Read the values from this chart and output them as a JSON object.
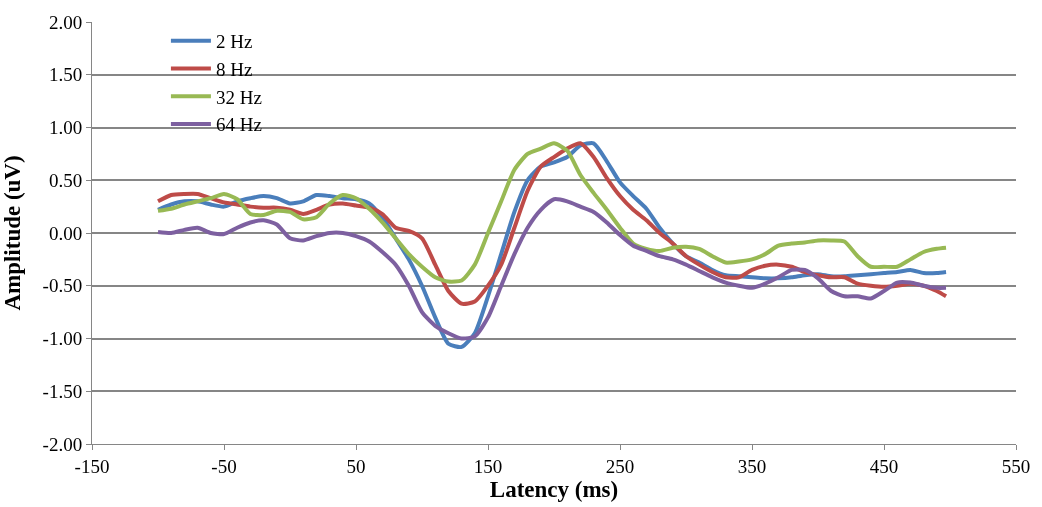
{
  "chart_data": {
    "type": "line",
    "xlabel": "Latency (ms)",
    "ylabel": "Amplitude (uV)",
    "x": [
      -100,
      -90,
      -80,
      -70,
      -60,
      -50,
      -40,
      -30,
      -20,
      -10,
      0,
      10,
      20,
      30,
      40,
      50,
      60,
      70,
      80,
      90,
      100,
      110,
      120,
      130,
      140,
      150,
      160,
      170,
      180,
      190,
      200,
      210,
      220,
      230,
      240,
      250,
      260,
      270,
      280,
      290,
      300,
      310,
      320,
      330,
      340,
      350,
      360,
      370,
      380,
      390,
      400,
      410,
      420,
      430,
      440,
      450,
      460,
      470,
      480,
      490,
      497
    ],
    "series": [
      {
        "name": "2 Hz",
        "color": "#4a7ebb",
        "values": [
          0.22,
          0.27,
          0.3,
          0.3,
          0.27,
          0.25,
          0.3,
          0.33,
          0.35,
          0.33,
          0.28,
          0.3,
          0.36,
          0.35,
          0.33,
          0.32,
          0.28,
          0.15,
          -0.05,
          -0.25,
          -0.5,
          -0.8,
          -1.05,
          -1.08,
          -0.95,
          -0.6,
          -0.2,
          0.2,
          0.5,
          0.63,
          0.67,
          0.72,
          0.83,
          0.85,
          0.68,
          0.48,
          0.35,
          0.23,
          0.05,
          -0.1,
          -0.22,
          -0.28,
          -0.35,
          -0.4,
          -0.41,
          -0.42,
          -0.43,
          -0.43,
          -0.42,
          -0.4,
          -0.39,
          -0.41,
          -0.41,
          -0.4,
          -0.39,
          -0.38,
          -0.37,
          -0.35,
          -0.38,
          -0.38,
          -0.37
        ]
      },
      {
        "name": "8 Hz",
        "color": "#be4b48",
        "values": [
          0.3,
          0.36,
          0.37,
          0.37,
          0.33,
          0.29,
          0.27,
          0.25,
          0.24,
          0.24,
          0.22,
          0.18,
          0.22,
          0.27,
          0.28,
          0.26,
          0.24,
          0.18,
          0.05,
          0.02,
          -0.05,
          -0.3,
          -0.55,
          -0.67,
          -0.65,
          -0.5,
          -0.3,
          0.05,
          0.4,
          0.63,
          0.72,
          0.8,
          0.85,
          0.72,
          0.52,
          0.35,
          0.22,
          0.12,
          0.0,
          -0.1,
          -0.22,
          -0.3,
          -0.37,
          -0.42,
          -0.42,
          -0.35,
          -0.31,
          -0.3,
          -0.32,
          -0.37,
          -0.4,
          -0.42,
          -0.42,
          -0.48,
          -0.5,
          -0.51,
          -0.5,
          -0.48,
          -0.5,
          -0.55,
          -0.6
        ]
      },
      {
        "name": "32 Hz",
        "color": "#98b954",
        "values": [
          0.21,
          0.23,
          0.27,
          0.3,
          0.33,
          0.37,
          0.32,
          0.18,
          0.17,
          0.21,
          0.2,
          0.13,
          0.15,
          0.28,
          0.36,
          0.33,
          0.23,
          0.1,
          -0.05,
          -0.2,
          -0.32,
          -0.42,
          -0.46,
          -0.45,
          -0.3,
          0.0,
          0.3,
          0.6,
          0.75,
          0.8,
          0.85,
          0.78,
          0.55,
          0.38,
          0.22,
          0.05,
          -0.1,
          -0.15,
          -0.17,
          -0.14,
          -0.13,
          -0.15,
          -0.22,
          -0.28,
          -0.27,
          -0.25,
          -0.2,
          -0.12,
          -0.1,
          -0.09,
          -0.07,
          -0.07,
          -0.08,
          -0.22,
          -0.32,
          -0.32,
          -0.32,
          -0.25,
          -0.18,
          -0.15,
          -0.14
        ]
      },
      {
        "name": "64 Hz",
        "color": "#7d60a0",
        "values": [
          0.01,
          0.0,
          0.03,
          0.05,
          0.0,
          -0.01,
          0.05,
          0.1,
          0.12,
          0.08,
          -0.05,
          -0.07,
          -0.03,
          0.0,
          0.0,
          -0.03,
          -0.08,
          -0.18,
          -0.3,
          -0.5,
          -0.75,
          -0.88,
          -0.95,
          -1.0,
          -0.98,
          -0.8,
          -0.5,
          -0.2,
          0.05,
          0.22,
          0.32,
          0.3,
          0.25,
          0.2,
          0.1,
          -0.02,
          -0.12,
          -0.17,
          -0.22,
          -0.25,
          -0.3,
          -0.36,
          -0.42,
          -0.47,
          -0.5,
          -0.52,
          -0.48,
          -0.42,
          -0.35,
          -0.35,
          -0.43,
          -0.55,
          -0.6,
          -0.6,
          -0.62,
          -0.55,
          -0.47,
          -0.47,
          -0.5,
          -0.52,
          -0.52
        ]
      }
    ],
    "xlim": [
      -150,
      550
    ],
    "xticks": [
      -150,
      -50,
      50,
      150,
      250,
      350,
      450,
      550
    ],
    "ylim": [
      -2,
      2
    ],
    "yticks": [
      {
        "value": -2,
        "label": "-2.00"
      },
      {
        "value": -1.5,
        "label": "-1.50"
      },
      {
        "value": -1,
        "label": "-1.00"
      },
      {
        "value": -0.5,
        "label": "-0.50"
      },
      {
        "value": 0,
        "label": "0.00"
      },
      {
        "value": 0.5,
        "label": "0.50"
      },
      {
        "value": 1,
        "label": "1.00"
      },
      {
        "value": 1.5,
        "label": "1.50"
      },
      {
        "value": 2,
        "label": "2.00"
      }
    ],
    "grid": "y",
    "legend": "top left",
    "marker": "none",
    "line_style": "solid"
  }
}
